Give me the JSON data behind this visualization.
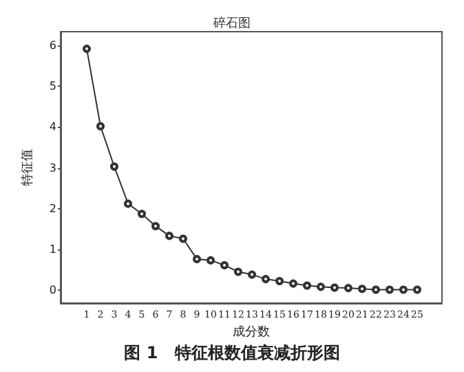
{
  "chart_data": {
    "type": "line",
    "title": "碎石图",
    "xlabel": "成分数",
    "ylabel": "特征值",
    "annotations": [
      "图 1　特征根数值衰减折形图"
    ],
    "x": [
      1,
      2,
      3,
      4,
      5,
      6,
      7,
      8,
      9,
      10,
      11,
      12,
      13,
      14,
      15,
      16,
      17,
      18,
      19,
      20,
      21,
      22,
      23,
      24,
      25
    ],
    "series": [
      {
        "color": "#333333",
        "values": [
          5.92,
          4.02,
          3.03,
          2.12,
          1.87,
          1.57,
          1.33,
          1.26,
          0.76,
          0.73,
          0.61,
          0.45,
          0.38,
          0.27,
          0.22,
          0.16,
          0.11,
          0.08,
          0.06,
          0.05,
          0.03,
          0.01,
          0.01,
          0.01,
          0.01
        ]
      }
    ],
    "xlim": [
      -0.9,
      26.8
    ],
    "xticks": [
      1,
      2,
      3,
      4,
      5,
      6,
      7,
      8,
      9,
      10,
      11,
      12,
      13,
      14,
      15,
      16,
      17,
      18,
      19,
      20,
      21,
      22,
      23,
      24,
      25
    ],
    "ylim": [
      -0.32,
      6.34
    ],
    "yticks": [
      0,
      1,
      2,
      3,
      4,
      5,
      6
    ],
    "grid": false,
    "marker": "circle",
    "line_style": "solid"
  }
}
